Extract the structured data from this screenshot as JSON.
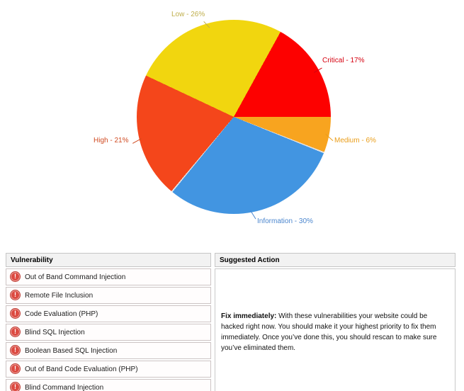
{
  "chart_data": {
    "type": "pie",
    "title": "",
    "unit": "percent",
    "legend_position": "labels-around-pie",
    "categories": [
      "Medium",
      "Information",
      "High",
      "Low",
      "Critical"
    ],
    "values": [
      6,
      30,
      21,
      26,
      17
    ],
    "start": "east-clockwise",
    "separator_after_indices": [
      0,
      1
    ],
    "separator_color": "#e3e3e3",
    "slices": [
      {
        "label": "Medium",
        "pct": 6,
        "color": "#f8a41f",
        "label_color": "#ea9d18",
        "display": "Medium - 6%"
      },
      {
        "label": "Information",
        "pct": 30,
        "color": "#4295e1",
        "label_color": "#4b86ce",
        "display": "Information - 30%"
      },
      {
        "label": "High",
        "pct": 21,
        "color": "#f4461b",
        "label_color": "#d04b22",
        "display": "High - 21%"
      },
      {
        "label": "Low",
        "pct": 26,
        "color": "#f1d60f",
        "label_color": "#bfae4b",
        "display": "Low - 26%"
      },
      {
        "label": "Critical",
        "pct": 17,
        "color": "#fd0100",
        "label_color": "#d6000f",
        "display": "Critical - 17%"
      }
    ]
  },
  "table": {
    "columns": [
      "Vulnerability",
      "Suggested Action"
    ],
    "icon_glyph": "!",
    "rows": [
      {
        "icon": "critical-alert-icon",
        "name": "Out of Band Command Injection"
      },
      {
        "icon": "critical-alert-icon",
        "name": "Remote File Inclusion"
      },
      {
        "icon": "critical-alert-icon",
        "name": "Code Evaluation (PHP)"
      },
      {
        "icon": "critical-alert-icon",
        "name": "Blind SQL Injection"
      },
      {
        "icon": "critical-alert-icon",
        "name": "Boolean Based SQL Injection"
      },
      {
        "icon": "critical-alert-icon",
        "name": "Out of Band Code Evaluation (PHP)"
      },
      {
        "icon": "critical-alert-icon",
        "name": "Blind Command Injection"
      }
    ],
    "suggested_action": {
      "lead": "Fix immediately:",
      "text": " With these vulnerabilities your website could be hacked right now. You should make it your highest priority to fix them immediately. Once you’ve done this, you should rescan to make sure you’ve eliminated them."
    }
  }
}
